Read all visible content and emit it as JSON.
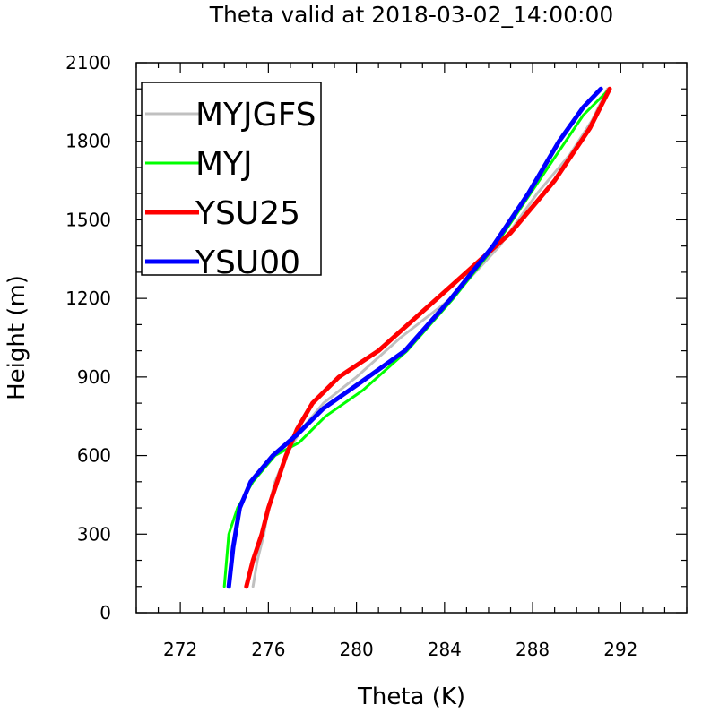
{
  "chart_data": {
    "type": "line",
    "title": "Theta valid at 2018-03-02_14:00:00",
    "xlabel": "Theta (K)",
    "ylabel": "Height (m)",
    "xlim": [
      270,
      295
    ],
    "ylim": [
      0,
      2100
    ],
    "xticks": [
      272,
      276,
      280,
      284,
      288,
      292
    ],
    "yticks": [
      0,
      300,
      600,
      900,
      1200,
      1500,
      1800,
      2100
    ],
    "legend_position": "top-left",
    "grid": false,
    "series": [
      {
        "name": "MYJGFS",
        "color": "#c0c0c0",
        "x": [
          275.3,
          275.5,
          275.8,
          276.0,
          276.3,
          276.8,
          277.5,
          278.5,
          280.0,
          282.0,
          284.3,
          286.5,
          288.2,
          289.7,
          290.7,
          291.4
        ],
        "y": [
          100,
          200,
          300,
          400,
          500,
          600,
          700,
          800,
          900,
          1050,
          1200,
          1400,
          1600,
          1750,
          1880,
          2000
        ]
      },
      {
        "name": "MYJ",
        "color": "#00ff00",
        "x": [
          274.0,
          274.2,
          274.6,
          275.3,
          276.3,
          277.4,
          278.6,
          280.3,
          282.3,
          284.4,
          286.3,
          287.9,
          289.1,
          290.3,
          291.5
        ],
        "y": [
          100,
          300,
          400,
          500,
          600,
          650,
          750,
          850,
          1000,
          1200,
          1400,
          1600,
          1750,
          1900,
          2000
        ]
      },
      {
        "name": "YSU25",
        "color": "#ff0000",
        "x": [
          275.0,
          275.3,
          275.7,
          276.0,
          276.4,
          276.8,
          277.3,
          278.0,
          279.2,
          281.0,
          283.0,
          285.0,
          287.0,
          289.0,
          290.6,
          291.5
        ],
        "y": [
          100,
          200,
          300,
          400,
          500,
          600,
          700,
          800,
          900,
          1000,
          1150,
          1300,
          1450,
          1650,
          1850,
          2000
        ]
      },
      {
        "name": "YSU00",
        "color": "#0000ff",
        "x": [
          274.2,
          274.4,
          274.7,
          275.2,
          276.2,
          277.3,
          278.5,
          280.2,
          282.2,
          284.3,
          286.2,
          287.8,
          289.2,
          290.3,
          291.1
        ],
        "y": [
          100,
          250,
          400,
          500,
          600,
          680,
          780,
          880,
          1000,
          1200,
          1400,
          1600,
          1800,
          1930,
          2000
        ]
      }
    ]
  }
}
